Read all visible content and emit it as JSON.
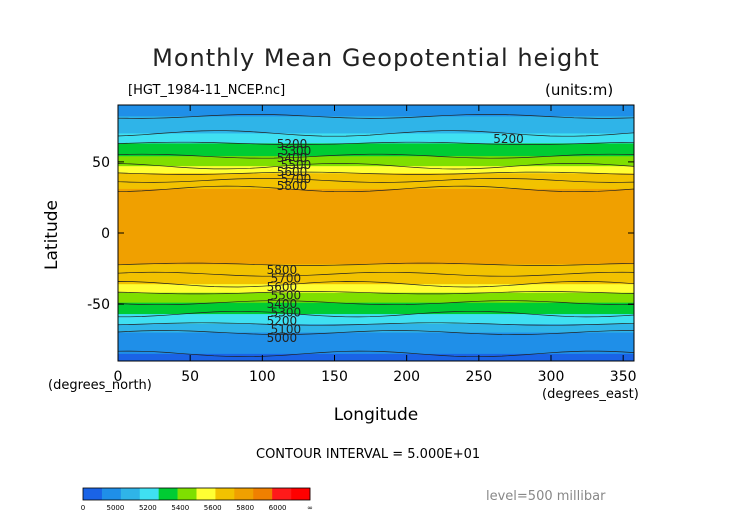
{
  "title": "Monthly Mean Geopotential height",
  "file_label": "[HGT_1984-11_NCEP.nc]",
  "units_label": "(units:m)",
  "y_axis_label": "Latitude",
  "x_axis_label": "Longitude",
  "x_unit_left": "(degrees_north)",
  "x_unit_right": "(degrees_east)",
  "contour_interval": "CONTOUR INTERVAL = 5.000E+01",
  "level_label": "level=500 millibar",
  "chart_data": {
    "type": "heatmap",
    "title": "Monthly Mean Geopotential height",
    "xlabel": "Longitude",
    "ylabel": "Latitude",
    "xlim": [
      0,
      357.5
    ],
    "ylim": [
      -90,
      90
    ],
    "x_ticks": [
      0,
      50,
      100,
      150,
      200,
      250,
      300,
      350
    ],
    "y_ticks": [
      50,
      0,
      -50
    ],
    "contour_labels": [
      "5200",
      "5300",
      "5400",
      "5500",
      "5600",
      "5700",
      "5800",
      "5000",
      "5100"
    ],
    "latitude_bands": [
      {
        "lat_top": 90,
        "lat_bottom": 82,
        "value": 5150
      },
      {
        "lat_top": 82,
        "lat_bottom": 70,
        "value": 5250
      },
      {
        "lat_top": 70,
        "lat_bottom": 63,
        "value": 5330
      },
      {
        "lat_top": 63,
        "lat_bottom": 54,
        "value": 5450
      },
      {
        "lat_top": 54,
        "lat_bottom": 47,
        "value": 5530
      },
      {
        "lat_top": 47,
        "lat_bottom": 42,
        "value": 5650
      },
      {
        "lat_top": 42,
        "lat_bottom": 37,
        "value": 5720
      },
      {
        "lat_top": 37,
        "lat_bottom": 31,
        "value": 5780
      },
      {
        "lat_top": 31,
        "lat_bottom": -22,
        "value": 5850
      },
      {
        "lat_top": -22,
        "lat_bottom": -29,
        "value": 5780
      },
      {
        "lat_top": -29,
        "lat_bottom": -36,
        "value": 5720
      },
      {
        "lat_top": -36,
        "lat_bottom": -42,
        "value": 5630
      },
      {
        "lat_top": -42,
        "lat_bottom": -49,
        "value": 5530
      },
      {
        "lat_top": -49,
        "lat_bottom": -57,
        "value": 5430
      },
      {
        "lat_top": -57,
        "lat_bottom": -64,
        "value": 5320
      },
      {
        "lat_top": -64,
        "lat_bottom": -70,
        "value": 5220
      },
      {
        "lat_top": -70,
        "lat_bottom": -85,
        "value": 5100
      },
      {
        "lat_top": -85,
        "lat_bottom": -90,
        "value": 4980
      }
    ],
    "colorbar": {
      "tick_labels": [
        "0",
        "5000",
        "5200",
        "5400",
        "5600",
        "5800",
        "6000",
        "∞"
      ],
      "colors": [
        "#1a63e6",
        "#1f8fe8",
        "#2fb4e8",
        "#3fe0f2",
        "#00cc33",
        "#7fdf00",
        "#ffff33",
        "#f2c200",
        "#f0a000",
        "#f08000",
        "#ff1a1a",
        "#ff0000"
      ]
    }
  }
}
